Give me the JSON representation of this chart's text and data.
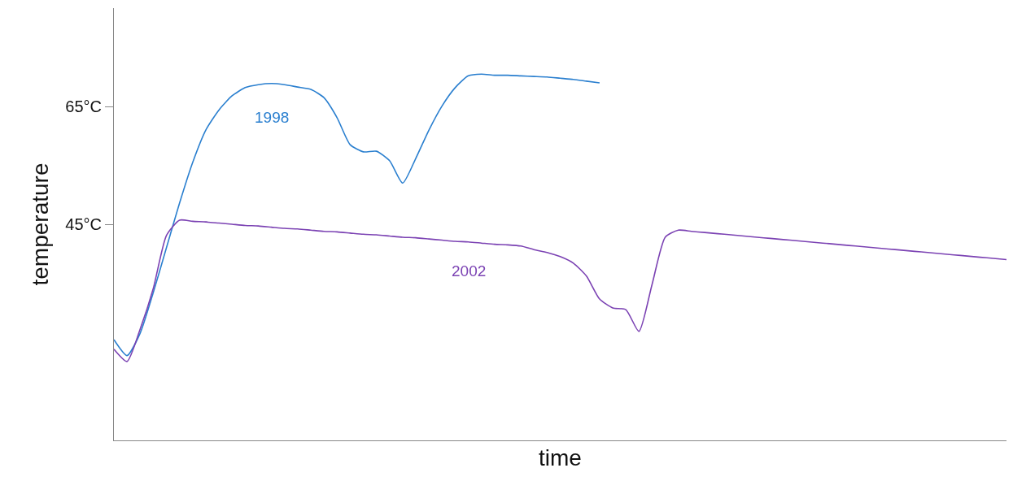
{
  "chart_data": {
    "type": "line",
    "xlabel": "time",
    "ylabel": "temperature",
    "ylim": [
      8.3,
      81.7
    ],
    "yticks": [
      {
        "value": 45,
        "label": "45°C"
      },
      {
        "value": 65,
        "label": "65°C"
      }
    ],
    "grid": false,
    "legend": false,
    "marker": "none",
    "line_style": "solid",
    "tick_labels": "y",
    "categories": [
      null,
      null,
      null,
      null,
      null,
      null,
      null,
      null,
      null,
      null,
      null,
      null,
      null,
      null,
      null,
      null,
      null,
      null,
      null,
      null,
      null,
      null,
      null,
      null,
      null,
      null,
      null,
      null,
      null,
      null,
      null,
      null,
      null,
      null,
      null,
      null,
      null,
      null,
      null,
      null,
      null,
      null,
      null,
      null,
      null,
      null,
      null,
      null,
      null,
      null,
      null,
      null,
      null,
      null,
      null,
      null,
      null,
      null,
      null,
      null,
      null,
      null,
      null,
      null,
      null,
      null,
      null,
      null,
      null
    ],
    "series": [
      {
        "name": "1998",
        "color": "#2a7fcf",
        "values": [
          25.4,
          22.7,
          26.5,
          33.4,
          41.0,
          48.6,
          55.5,
          61.0,
          64.4,
          66.8,
          68.2,
          68.7,
          68.9,
          68.7,
          68.3,
          67.9,
          66.5,
          63.1,
          58.5,
          57.3,
          57.4,
          55.8,
          52.0,
          56.2,
          61.0,
          65.1,
          68.2,
          70.2,
          70.5,
          70.3,
          70.3,
          70.2,
          70.1,
          70.0,
          69.8,
          69.6,
          69.3,
          69.0,
          null,
          null,
          null,
          null,
          null,
          null,
          null,
          null,
          null,
          null,
          null,
          null,
          null,
          null,
          null,
          null,
          null,
          null,
          null,
          null,
          null,
          null,
          null,
          null,
          null,
          null,
          null,
          null,
          null,
          null,
          null
        ]
      },
      {
        "name": "2002",
        "color": "#7b42b3",
        "values": [
          23.8,
          21.7,
          27.2,
          34.1,
          43.1,
          45.7,
          45.5,
          45.4,
          45.2,
          45.0,
          44.8,
          44.7,
          44.5,
          44.3,
          44.2,
          44.0,
          43.8,
          43.7,
          43.5,
          43.3,
          43.2,
          43.0,
          42.8,
          42.7,
          42.5,
          42.3,
          42.1,
          42.0,
          41.8,
          41.6,
          41.5,
          41.3,
          40.7,
          40.2,
          39.5,
          38.4,
          36.2,
          32.3,
          30.8,
          30.5,
          26.8,
          34.8,
          42.8,
          44.0,
          43.8,
          43.6,
          43.4,
          43.2,
          43.0,
          42.8,
          42.6,
          42.4,
          42.2,
          42.0,
          41.8,
          41.6,
          41.4,
          41.2,
          41.0,
          40.8,
          40.6,
          40.4,
          40.2,
          40.0,
          39.8,
          39.6,
          39.4,
          39.2,
          39.0
        ]
      }
    ]
  }
}
